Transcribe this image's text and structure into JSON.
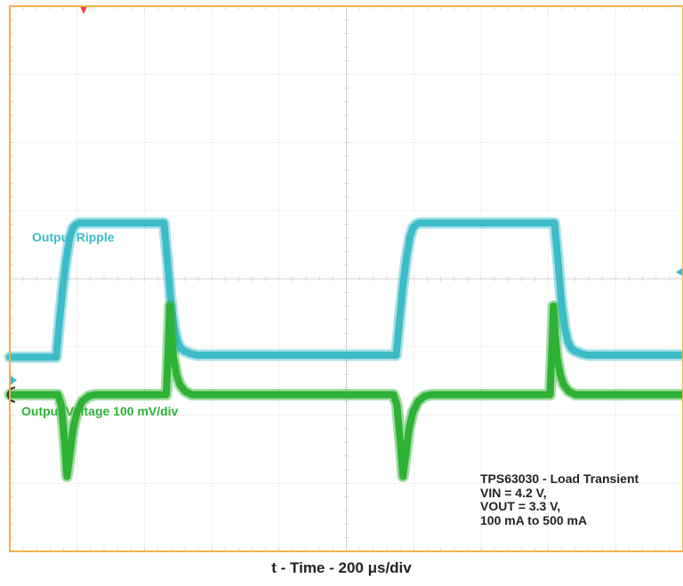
{
  "chart_data": {
    "type": "line",
    "title": "",
    "xlabel": "t - Time - 200 μs/div",
    "ylabel": "",
    "grid": true,
    "x_time_per_div_us": 200,
    "x_range_us": [
      0,
      2000
    ],
    "y_range_div": [
      -4,
      4
    ],
    "series": [
      {
        "name": "Output Ripple",
        "color": "#3dbcc8",
        "x_us": [
          0,
          138,
          148,
          158,
          168,
          178,
          188,
          198,
          208,
          458,
          468,
          478,
          488,
          498,
          508,
          518,
          528,
          538,
          548,
          558,
          1148,
          1158,
          1168,
          1178,
          1188,
          1198,
          1208,
          1218,
          1228,
          1618,
          1628,
          1638,
          1648,
          1658,
          1668,
          1678,
          1688,
          1698,
          1708,
          1718,
          2000
        ],
        "y_div": [
          -1.15,
          -1.15,
          -0.6,
          -0.1,
          0.3,
          0.6,
          0.75,
          0.8,
          0.82,
          0.82,
          0.3,
          -0.3,
          -0.7,
          -0.92,
          -1.02,
          -1.06,
          -1.08,
          -1.1,
          -1.11,
          -1.12,
          -1.12,
          -0.6,
          -0.1,
          0.3,
          0.6,
          0.75,
          0.8,
          0.82,
          0.82,
          0.82,
          0.3,
          -0.3,
          -0.7,
          -0.92,
          -1.02,
          -1.06,
          -1.08,
          -1.1,
          -1.11,
          -1.12,
          -1.12
        ]
      },
      {
        "name": "Output Voltage 100 mV/div",
        "color": "#2eb135",
        "x_us": [
          0,
          143,
          153,
          163,
          170,
          178,
          188,
          200,
          215,
          235,
          255,
          465,
          470,
          475,
          480,
          486,
          495,
          505,
          520,
          540,
          1125,
          1140,
          1150,
          1160,
          1168,
          1176,
          1186,
          1198,
          1213,
          1233,
          1253,
          1605,
          1610,
          1615,
          1620,
          1626,
          1635,
          1645,
          1660,
          1680,
          2000
        ],
        "y_div": [
          -1.7,
          -1.7,
          -1.85,
          -2.4,
          -2.9,
          -2.6,
          -2.2,
          -1.95,
          -1.8,
          -1.72,
          -1.7,
          -1.7,
          -1.1,
          -0.4,
          -0.8,
          -1.15,
          -1.4,
          -1.55,
          -1.65,
          -1.7,
          -1.7,
          -1.7,
          -1.85,
          -2.4,
          -2.9,
          -2.6,
          -2.2,
          -1.95,
          -1.8,
          -1.72,
          -1.7,
          -1.7,
          -1.1,
          -0.4,
          -0.8,
          -1.15,
          -1.4,
          -1.55,
          -1.65,
          -1.7,
          -1.7
        ]
      }
    ],
    "annotations": [
      "TPS63030 - Load Transient",
      "VIN = 4.2 V,",
      "VOUT = 3.3 V,",
      "100 mA to 500 mA"
    ]
  },
  "colors": {
    "frame": "#f3b14a",
    "grid": "#d3d3d3",
    "ripple": "#3dbcc8",
    "voltage": "#2eb135",
    "trigger_marker": "#e8443a"
  }
}
